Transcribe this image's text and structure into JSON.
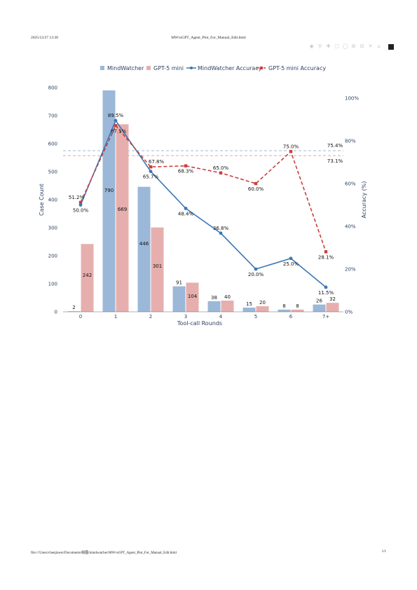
{
  "print": {
    "date": "2025/12/27 13:30",
    "title": "MWvsGPT_Agent_Plot_For_Manual_Edit.html",
    "footer_path": "file:///Users/chenjiawei/Documents/绘图/mindwatcher/MWvsGPT_Agent_Plot_For_Manual_Edit.html",
    "footer_page": "1/1"
  },
  "modebar": {
    "icons": [
      "camera-icon",
      "zoom-icon",
      "pan-icon",
      "box-select-icon",
      "lasso-icon",
      "zoom-in-icon",
      "zoom-out-icon",
      "autoscale-icon",
      "reset-axes-icon",
      "plotly-logo"
    ]
  },
  "chart_data": {
    "type": "bar",
    "xlabel": "Tool-call Rounds",
    "ylabel": "Case Count",
    "y2label": "Accuracy (%)",
    "categories": [
      "0",
      "1",
      "2",
      "3",
      "4",
      "5",
      "6",
      "7+"
    ],
    "ylim": [
      0,
      800
    ],
    "yticks": [
      0,
      100,
      200,
      300,
      400,
      500,
      600,
      700,
      800
    ],
    "y2lim": [
      0,
      100
    ],
    "y2ticks": [
      0,
      20,
      40,
      60,
      80,
      100
    ],
    "y2tick_labels": [
      "0%",
      "20%",
      "40%",
      "60%",
      "80%",
      "100%"
    ],
    "legend_position": "top",
    "series": [
      {
        "name": "MindWatcher",
        "kind": "bar",
        "color": "#9bb8d8",
        "values": [
          2,
          790,
          446,
          91,
          38,
          15,
          8,
          26
        ],
        "labels": [
          "2",
          "790",
          "446",
          "91",
          "38",
          "15",
          "8",
          "26"
        ]
      },
      {
        "name": "GPT-5 mini",
        "kind": "bar",
        "color": "#e6afae",
        "values": [
          242,
          669,
          301,
          104,
          40,
          20,
          8,
          32
        ],
        "labels": [
          "242",
          "669",
          "301",
          "104",
          "40",
          "20",
          "8",
          "32"
        ]
      },
      {
        "name": "MindWatcher Accuracy",
        "kind": "line",
        "axis": "y2",
        "color": "#3a78b5",
        "values": [
          50.0,
          89.5,
          65.7,
          48.4,
          36.8,
          20.0,
          25.0,
          11.5
        ],
        "labels": [
          "50.0%",
          "89.5%",
          "65.7%",
          "48.4%",
          "36.8%",
          "20.0%",
          "25.0%",
          "11.5%"
        ]
      },
      {
        "name": "GPT-5 mini Accuracy",
        "kind": "line",
        "axis": "y2",
        "dash": true,
        "color": "#c8403c",
        "values": [
          51.2,
          87.1,
          67.8,
          68.3,
          65.0,
          60.0,
          75.0,
          28.1
        ],
        "labels": [
          "51.2%",
          "87.1%",
          "67.8%",
          "68.3%",
          "65.0%",
          "60.0%",
          "75.0%",
          "28.1%"
        ]
      }
    ],
    "reference_lines": [
      {
        "series": "MindWatcher Accuracy",
        "value": 75.4,
        "label": "75.4%",
        "color": "#8fb0d6"
      },
      {
        "series": "GPT-5 mini Accuracy",
        "value": 73.1,
        "label": "73.1%",
        "color": "#e2999a"
      }
    ],
    "grid": false
  }
}
